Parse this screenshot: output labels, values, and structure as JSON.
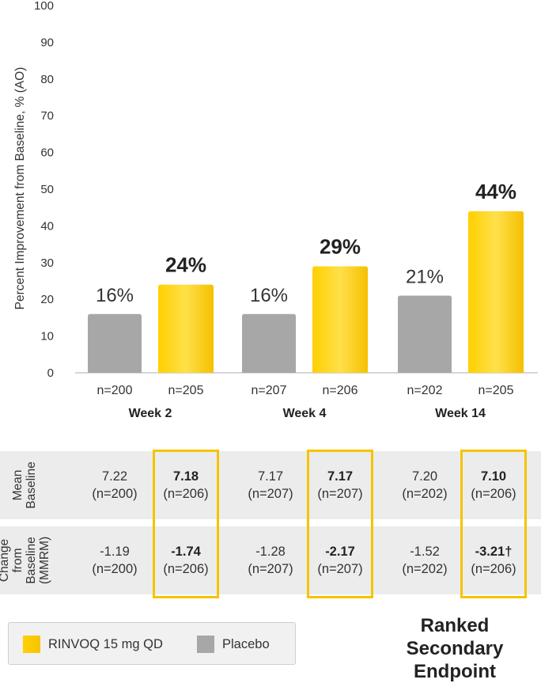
{
  "chart_data": {
    "type": "bar",
    "ylabel": "Percent Improvement from Baseline, % (AO)",
    "ylim": [
      0,
      100
    ],
    "yticks": [
      "0",
      "10",
      "20",
      "30",
      "40",
      "50",
      "60",
      "70",
      "80",
      "90",
      "100"
    ],
    "groups": [
      {
        "label": "Week 2",
        "placebo": {
          "value": 16,
          "label": "16%",
          "n": "n=200"
        },
        "rinvoq": {
          "value": 24,
          "label": "24%",
          "n": "n=205"
        }
      },
      {
        "label": "Week 4",
        "placebo": {
          "value": 16,
          "label": "16%",
          "n": "n=207"
        },
        "rinvoq": {
          "value": 29,
          "label": "29%",
          "n": "n=206"
        }
      },
      {
        "label": "Week 14",
        "placebo": {
          "value": 21,
          "label": "21%",
          "n": "n=202"
        },
        "rinvoq": {
          "value": 44,
          "label": "44%",
          "n": "n=205"
        }
      }
    ],
    "series": [
      {
        "name": "RINVOQ 15 mg QD",
        "color": "#ffd000"
      },
      {
        "name": "Placebo",
        "color": "#a7a7a7"
      }
    ]
  },
  "table": {
    "rows": [
      {
        "header": "Mean\nBaseline",
        "cells": [
          {
            "v": "7.22",
            "n": "(n=200)"
          },
          {
            "v": "7.18",
            "n": "(n=206)"
          },
          {
            "v": "7.17",
            "n": "(n=207)"
          },
          {
            "v": "7.17",
            "n": "(n=207)"
          },
          {
            "v": "7.20",
            "n": "(n=202)"
          },
          {
            "v": "7.10",
            "n": "(n=206)"
          }
        ]
      },
      {
        "header": "Change\nfrom\nBaseline\n(MMRM)",
        "cells": [
          {
            "v": "-1.19",
            "n": "(n=200)"
          },
          {
            "v": "-1.74",
            "n": "(n=206)"
          },
          {
            "v": "-1.28",
            "n": "(n=207)"
          },
          {
            "v": "-2.17",
            "n": "(n=207)"
          },
          {
            "v": "-1.52",
            "n": "(n=202)"
          },
          {
            "v": "-3.21†",
            "n": "(n=206)"
          }
        ]
      }
    ]
  },
  "legend": {
    "rinvoq": "RINVOQ 15 mg QD",
    "placebo": "Placebo"
  },
  "ranked_label": "Ranked\nSecondary\nEndpoint",
  "colors": {
    "rinvoq": "#ffd000",
    "placebo": "#a7a7a7",
    "highlight": "#f5c400"
  }
}
